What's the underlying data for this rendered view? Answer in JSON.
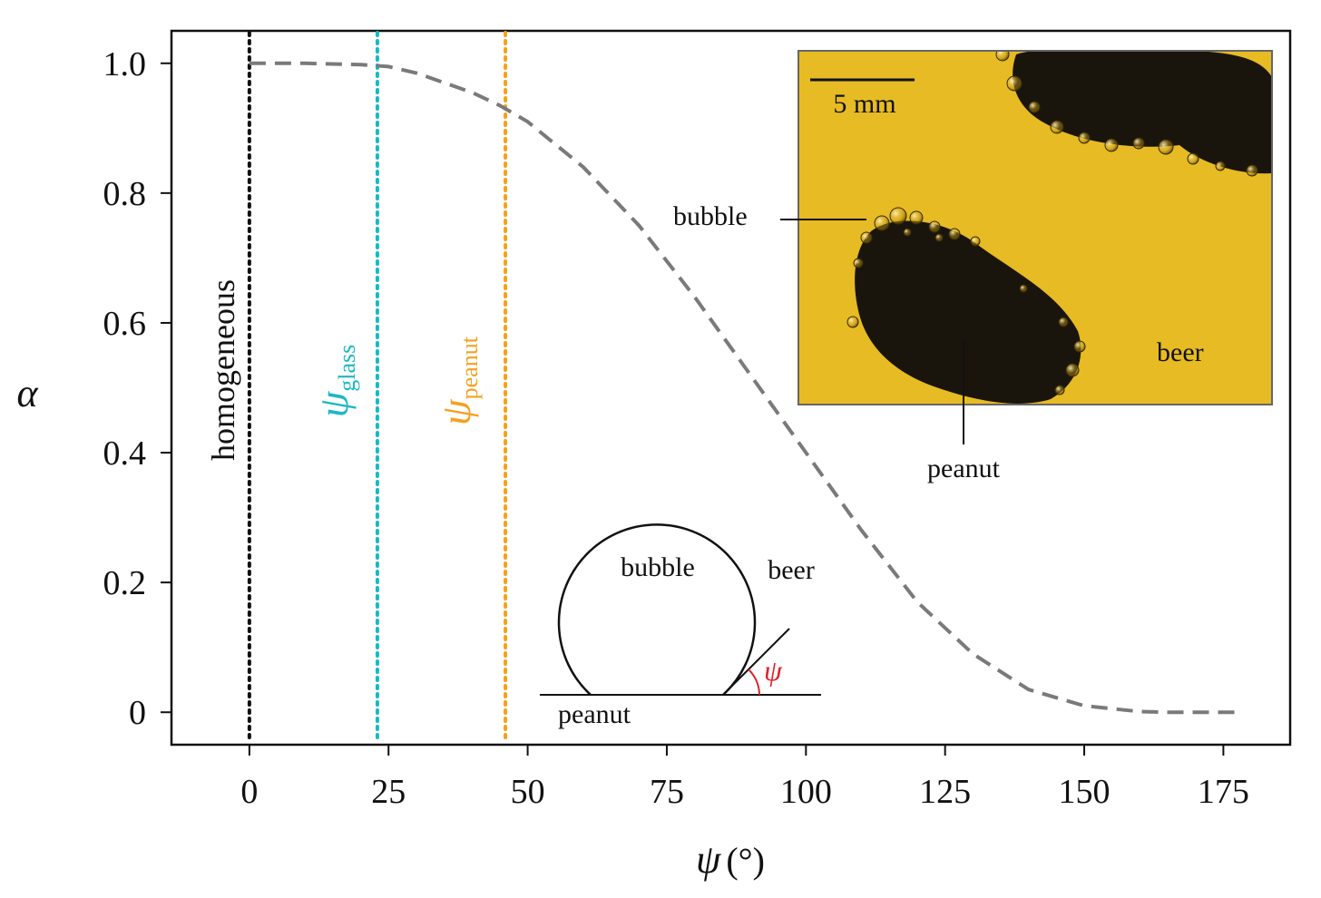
{
  "chart_data": {
    "type": "line",
    "title": "",
    "xlabel_symbol": "ψ",
    "xlabel_unit": "(°)",
    "ylabel": "α",
    "xlim": [
      -14,
      187
    ],
    "ylim": [
      -0.05,
      1.05
    ],
    "x_ticks": [
      0,
      25,
      50,
      75,
      100,
      125,
      150,
      175
    ],
    "x_tick_labels": [
      "0",
      "25",
      "50",
      "75",
      "100",
      "125",
      "150",
      "175"
    ],
    "y_ticks": [
      0,
      0.2,
      0.4,
      0.6,
      0.8,
      1.0
    ],
    "y_tick_labels": [
      "0",
      "0.2",
      "0.4",
      "0.6",
      "0.8",
      "1.0"
    ],
    "series": [
      {
        "name": "alpha",
        "style": "dashed",
        "color": "#7a7a7a",
        "x": [
          0,
          10,
          20,
          25,
          30,
          40,
          45,
          50,
          60,
          70,
          80,
          90,
          100,
          110,
          120,
          130,
          140,
          150,
          160,
          165,
          170,
          178
        ],
        "y": [
          1.0,
          1.0,
          0.998,
          0.995,
          0.985,
          0.955,
          0.935,
          0.91,
          0.84,
          0.75,
          0.64,
          0.52,
          0.4,
          0.28,
          0.17,
          0.09,
          0.035,
          0.01,
          0.001,
          0.0,
          0.0,
          0.0
        ]
      }
    ],
    "vertical_lines": [
      {
        "name": "homogeneous",
        "x": 0,
        "color": "#111111",
        "label": "homogeneous",
        "symbol": "",
        "subscript": ""
      },
      {
        "name": "glass",
        "x": 23,
        "color": "#1cb8c4",
        "label": "",
        "symbol": "ψ",
        "subscript": "glass"
      },
      {
        "name": "peanut",
        "x": 46,
        "color": "#f5a020",
        "label": "",
        "symbol": "ψ",
        "subscript": "peanut"
      }
    ]
  },
  "photo_inset": {
    "scale_bar_label": "5 mm",
    "labels": {
      "bubble": "bubble",
      "peanut": "peanut",
      "beer": "beer"
    },
    "background_color": "#e2b41c",
    "object_color": "#1a150c"
  },
  "diagram_inset": {
    "labels": {
      "bubble": "bubble",
      "beer": "beer",
      "peanut": "peanut",
      "angle": "ψ"
    },
    "angle_color": "#e0202a"
  }
}
